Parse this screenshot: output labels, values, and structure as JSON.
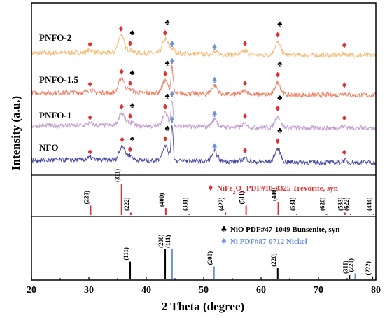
{
  "chart_data": {
    "type": "line",
    "xlabel": "2 Theta (degree)",
    "ylabel": "Intensity (a.u.)",
    "xlim": [
      20,
      80
    ],
    "x_ticks": [
      "20",
      "30",
      "40",
      "50",
      "60",
      "70",
      "80"
    ],
    "series": [
      {
        "name": "PNFO-2",
        "color": "#f7b870",
        "offset": 3,
        "peaks": [
          {
            "x": 30.2,
            "h": 0.06
          },
          {
            "x": 35.6,
            "h": 0.42
          },
          {
            "x": 37.2,
            "h": 0.08
          },
          {
            "x": 43.3,
            "h": 0.32
          },
          {
            "x": 44.5,
            "h": 0.1
          },
          {
            "x": 51.9,
            "h": 0.04
          },
          {
            "x": 57.2,
            "h": 0.08
          },
          {
            "x": 62.9,
            "h": 0.28
          },
          {
            "x": 74.5,
            "h": 0.04
          }
        ]
      },
      {
        "name": "PNFO-1.5",
        "color": "#f07a5c",
        "offset": 2,
        "peaks": [
          {
            "x": 30.2,
            "h": 0.06
          },
          {
            "x": 35.7,
            "h": 0.35
          },
          {
            "x": 37.2,
            "h": 0.08
          },
          {
            "x": 43.3,
            "h": 0.3
          },
          {
            "x": 44.5,
            "h": 0.62
          },
          {
            "x": 51.9,
            "h": 0.2
          },
          {
            "x": 57.2,
            "h": 0.08
          },
          {
            "x": 62.9,
            "h": 0.28
          },
          {
            "x": 74.5,
            "h": 0.04
          }
        ]
      },
      {
        "name": "PNFO-1",
        "color": "#c49ad0",
        "offset": 1,
        "peaks": [
          {
            "x": 30.2,
            "h": 0.05
          },
          {
            "x": 35.7,
            "h": 0.3
          },
          {
            "x": 37.2,
            "h": 0.08
          },
          {
            "x": 43.3,
            "h": 0.3
          },
          {
            "x": 44.5,
            "h": 0.62
          },
          {
            "x": 51.9,
            "h": 0.18
          },
          {
            "x": 57.2,
            "h": 0.08
          },
          {
            "x": 62.9,
            "h": 0.26
          },
          {
            "x": 74.5,
            "h": 0.04
          }
        ]
      },
      {
        "name": "NFO",
        "color": "#4a4aa6",
        "offset": 0,
        "peaks": [
          {
            "x": 30.2,
            "h": 0.05
          },
          {
            "x": 35.8,
            "h": 0.33
          },
          {
            "x": 37.2,
            "h": 0.1
          },
          {
            "x": 43.3,
            "h": 0.35
          },
          {
            "x": 44.5,
            "h": 0.82
          },
          {
            "x": 51.9,
            "h": 0.22
          },
          {
            "x": 57.2,
            "h": 0.08
          },
          {
            "x": 62.9,
            "h": 0.3
          },
          {
            "x": 74.5,
            "h": 0.04
          }
        ]
      }
    ],
    "markers": {
      "PNFO-2": {
        "diamond": [
          30.2,
          35.6,
          37.2,
          43.3,
          57.2,
          62.9,
          74.5
        ],
        "club": [
          37.2,
          43.3,
          62.9
        ],
        "arrow": [
          44.5,
          51.9
        ]
      },
      "PNFO-1.5": {
        "diamond": [
          30.2,
          35.7,
          37.2,
          43.3,
          57.2,
          62.9,
          74.5
        ],
        "club": [
          37.2,
          43.3,
          62.9
        ],
        "arrow": [
          44.5,
          51.9
        ]
      },
      "PNFO-1": {
        "diamond": [
          30.2,
          35.7,
          37.2,
          43.3,
          57.2,
          62.9,
          74.5
        ],
        "club": [
          37.2,
          43.3,
          62.9
        ],
        "arrow": [
          44.5,
          51.9
        ]
      },
      "NFO": {
        "diamond": [
          30.2,
          35.8,
          37.2,
          43.3,
          57.2,
          62.9,
          74.5
        ],
        "club": [
          37.2,
          43.3,
          62.9
        ],
        "arrow": [
          44.5,
          51.9
        ]
      }
    },
    "reference_nife2o4": {
      "legend_symbol": "♦",
      "legend_parts": [
        "NiFe",
        "2",
        "O",
        "4",
        " PDF#10-0325 Trevorite, syn"
      ],
      "color": "#e03030",
      "sticks": [
        {
          "x": 30.3,
          "h": 0.3,
          "hkl": "(220)"
        },
        {
          "x": 35.7,
          "h": 1.0,
          "hkl": "(311)"
        },
        {
          "x": 37.3,
          "h": 0.08,
          "hkl": "(222)"
        },
        {
          "x": 43.4,
          "h": 0.22,
          "hkl": "(400)"
        },
        {
          "x": 47.5,
          "h": 0.04,
          "hkl": "(331)"
        },
        {
          "x": 53.8,
          "h": 0.08,
          "hkl": "(422)"
        },
        {
          "x": 57.4,
          "h": 0.3,
          "hkl": "(511)"
        },
        {
          "x": 63.0,
          "h": 0.4,
          "hkl": "(440)"
        },
        {
          "x": 66.2,
          "h": 0.04,
          "hkl": "(531)"
        },
        {
          "x": 71.4,
          "h": 0.04,
          "hkl": "(620)"
        },
        {
          "x": 74.6,
          "h": 0.08,
          "hkl": "(533)"
        },
        {
          "x": 75.6,
          "h": 0.04,
          "hkl": "(622)"
        },
        {
          "x": 79.6,
          "h": 0.04,
          "hkl": "(444)"
        }
      ]
    },
    "reference_nio": {
      "legend_symbol": "♣",
      "legend_text": "NiO PDF#47-1049 Bunsenite, syn",
      "color": "#000000",
      "sticks": [
        {
          "x": 37.2,
          "h": 0.58,
          "hkl": "(111)"
        },
        {
          "x": 43.3,
          "h": 1.0,
          "hkl": "(200)"
        },
        {
          "x": 62.9,
          "h": 0.36,
          "hkl": "(220)"
        },
        {
          "x": 75.4,
          "h": 0.12,
          "hkl": "(311)"
        },
        {
          "x": 79.4,
          "h": 0.08,
          "hkl": "(222)"
        }
      ]
    },
    "reference_ni": {
      "legend_symbol": "♠",
      "legend_text": "Ni PDF#87-0712 Nickel",
      "color": "#6b8fe0",
      "sticks": [
        {
          "x": 44.5,
          "h": 1.0,
          "hkl": "(111)"
        },
        {
          "x": 51.8,
          "h": 0.42,
          "hkl": "(200)"
        },
        {
          "x": 76.4,
          "h": 0.18,
          "hkl": "(220)"
        }
      ]
    },
    "grid": false
  }
}
